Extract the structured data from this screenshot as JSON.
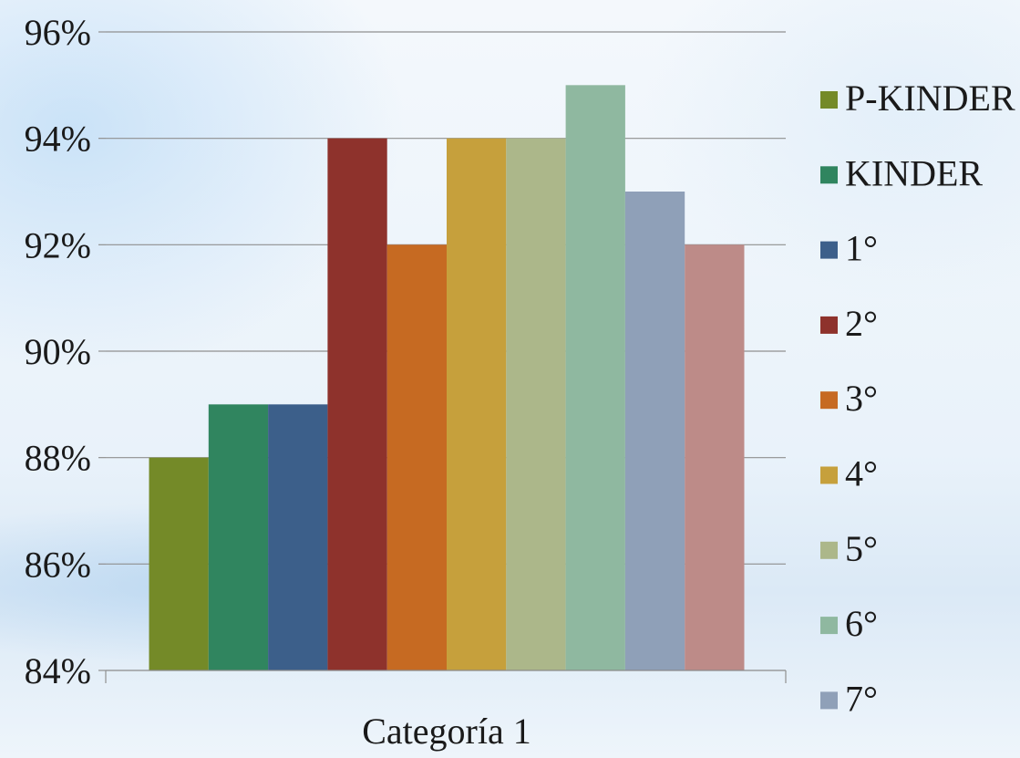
{
  "chart_data": {
    "type": "bar",
    "categories": [
      "Categoría 1"
    ],
    "series": [
      {
        "name": "P-KINDER",
        "values": [
          88
        ],
        "color": "#748a28"
      },
      {
        "name": "KINDER",
        "values": [
          89
        ],
        "color": "#30855f"
      },
      {
        "name": "1°",
        "values": [
          89
        ],
        "color": "#3c5f8a"
      },
      {
        "name": "2°",
        "values": [
          94
        ],
        "color": "#8e322c"
      },
      {
        "name": "3°",
        "values": [
          92
        ],
        "color": "#c66a22"
      },
      {
        "name": "4°",
        "values": [
          94
        ],
        "color": "#c6a03c"
      },
      {
        "name": "5°",
        "values": [
          94
        ],
        "color": "#acb78a"
      },
      {
        "name": "6°",
        "values": [
          95
        ],
        "color": "#8fb8a0"
      },
      {
        "name": "7°",
        "values": [
          93
        ],
        "color": "#8fa0b8"
      },
      {
        "name": "",
        "values": [
          92
        ],
        "color": "#bd8b88"
      }
    ],
    "yticks": [
      "84%",
      "86%",
      "88%",
      "90%",
      "92%",
      "94%",
      "96%"
    ],
    "ylim": [
      84,
      96
    ],
    "ystep": 2,
    "grid": true,
    "legend_position": "right"
  }
}
